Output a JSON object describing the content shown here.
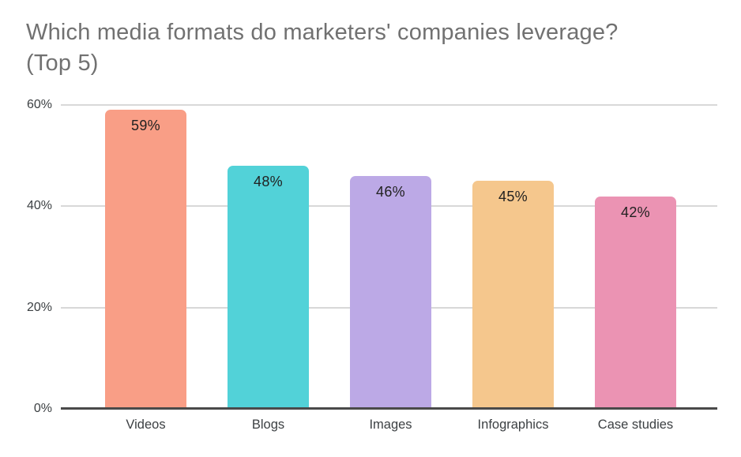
{
  "page": {
    "background_color": "#FFFFFF"
  },
  "chart_data": {
    "type": "bar",
    "title": "Which media formats do marketers' companies leverage? (Top 5)",
    "title_line1": "Which media formats do marketers' companies leverage?",
    "title_line2": "(Top 5)",
    "xlabel": "",
    "ylabel": "",
    "categories": [
      "Videos",
      "Blogs",
      "Images",
      "Infographics",
      "Case studies"
    ],
    "values": [
      59,
      48,
      46,
      45,
      42
    ],
    "value_labels": [
      "59%",
      "48%",
      "46%",
      "45%",
      "42%"
    ],
    "colors": [
      "#F99E86",
      "#52D2D8",
      "#BCA9E6",
      "#F5C78D",
      "#EB93B3"
    ],
    "ylim": [
      0,
      60
    ],
    "y_tick_step": 20,
    "y_tick_labels_top_to_bottom": [
      "60%",
      "40%",
      "20%",
      "0%"
    ],
    "grid": true,
    "legend_position": "none",
    "style": {
      "title_color": "#717171",
      "axis_label_color": "#3C4043",
      "value_label_color": "#212121",
      "gridline_color": "#D8D8D8",
      "axis_line_color": "#4A4A4A"
    }
  }
}
